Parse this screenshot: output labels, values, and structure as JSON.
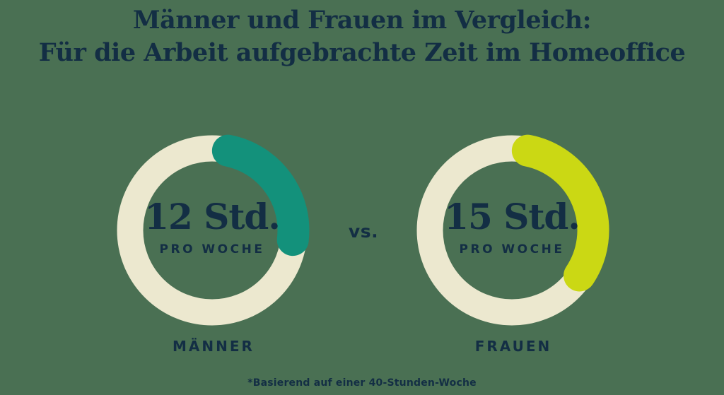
{
  "title": {
    "line1": "Männer und Frauen im Vergleich:",
    "line2": "Für die Arbeit aufgebrachte Zeit im Homeoffice"
  },
  "versus_label": "vs.",
  "footnote": "*Basierend auf einer 40-Stunden-Woche",
  "colors": {
    "background": "#4a7053",
    "text_navy": "#132e44",
    "track_cream": "#ece8cf",
    "maenner_teal": "#13917b",
    "frauen_lime": "#cbd814"
  },
  "chart_data": {
    "type": "pie",
    "subtype": "donut-progress-comparison",
    "title": "Männer und Frauen im Vergleich: Für die Arbeit aufgebrachte Zeit im Homeoffice",
    "footnote": "*Basierend auf einer 40-Stunden-Woche",
    "unit": "Stunden pro Woche",
    "reference_total_hours": 40,
    "start_angle_deg": 0,
    "direction": "clockwise",
    "track_color": "#ece8cf",
    "series": [
      {
        "name": "MÄNNER",
        "hours": 12,
        "fraction_of_40h_week": 0.3,
        "value_label": "12 Std.",
        "sub_label": "PRO WOCHE",
        "color": "#13917b"
      },
      {
        "name": "FRAUEN",
        "hours": 15,
        "fraction_of_40h_week": 0.375,
        "value_label": "15 Std.",
        "sub_label": "PRO WOCHE",
        "color": "#cbd814"
      }
    ]
  }
}
